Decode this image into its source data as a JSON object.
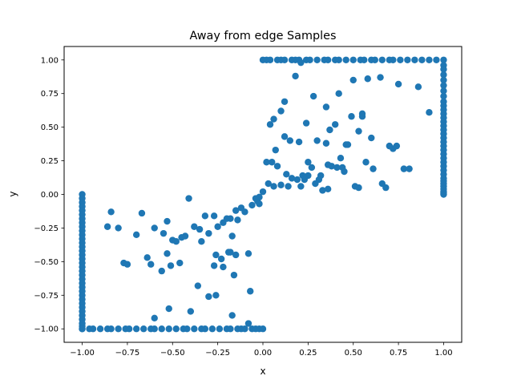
{
  "chart_data": {
    "type": "scatter",
    "title": "Away from edge Samples",
    "xlabel": "x",
    "ylabel": "y",
    "xlim": [
      -1.1,
      1.1
    ],
    "ylim": [
      -1.1,
      1.1
    ],
    "x_ticks": [
      -1.0,
      -0.75,
      -0.5,
      -0.25,
      0.0,
      0.25,
      0.5,
      0.75,
      1.0
    ],
    "x_tick_labels": [
      "−1.00",
      "−0.75",
      "−0.50",
      "−0.25",
      "0.00",
      "0.25",
      "0.50",
      "0.75",
      "1.00"
    ],
    "y_ticks": [
      -1.0,
      -0.75,
      -0.5,
      -0.25,
      0.0,
      0.25,
      0.5,
      0.75,
      1.0
    ],
    "y_tick_labels": [
      "−1.00",
      "−0.75",
      "−0.50",
      "−0.25",
      "0.00",
      "0.25",
      "0.50",
      "0.75",
      "1.00"
    ],
    "grid": false,
    "marker_color": "#1f77b4",
    "series": [
      {
        "x": [
          1.0,
          1.0,
          1.0,
          1.0,
          1.0,
          1.0,
          1.0,
          1.0,
          1.0,
          1.0,
          1.0,
          1.0,
          1.0,
          1.0,
          1.0,
          1.0,
          1.0,
          1.0,
          1.0,
          1.0,
          1.0,
          1.0,
          1.0,
          1.0,
          1.0,
          1.0,
          1.0,
          1.0,
          1.0,
          1.0,
          1.0,
          1.0,
          1.0,
          1.0,
          1.0,
          0.0,
          0.02,
          0.04,
          0.08,
          0.1,
          0.12,
          0.16,
          0.18,
          0.2,
          0.24,
          0.26,
          0.3,
          0.34,
          0.36,
          0.4,
          0.42,
          0.46,
          0.5,
          0.54,
          0.56,
          0.6,
          0.62,
          0.66,
          0.7,
          0.72,
          0.76,
          0.8,
          0.84,
          0.88,
          0.92,
          0.96,
          -1.0,
          -1.0,
          -1.0,
          -1.0,
          -1.0,
          -1.0,
          -1.0,
          -1.0,
          -1.0,
          -1.0,
          -1.0,
          -1.0,
          -1.0,
          -1.0,
          -1.0,
          -1.0,
          -1.0,
          -1.0,
          -1.0,
          -1.0,
          -1.0,
          -1.0,
          -1.0,
          -1.0,
          -1.0,
          -1.0,
          -1.0,
          -1.0,
          -1.0,
          -1.0,
          -1.0,
          -1.0,
          -1.0,
          -1.0,
          -1.0,
          -1.0,
          -0.96,
          -0.94,
          -0.9,
          -0.86,
          -0.84,
          -0.8,
          -0.76,
          -0.74,
          -0.7,
          -0.66,
          -0.62,
          -0.6,
          -0.56,
          -0.52,
          -0.48,
          -0.44,
          -0.42,
          -0.38,
          -0.34,
          -0.32,
          -0.28,
          -0.24,
          -0.2,
          -0.18,
          -0.14,
          -0.12,
          -0.1,
          -0.06,
          -0.04,
          -0.02,
          0.0,
          0.04,
          0.06,
          0.1,
          0.12,
          0.18,
          0.21,
          0.24,
          0.28,
          0.35,
          0.37,
          0.42,
          0.5,
          0.55,
          0.58,
          0.75,
          0.86,
          0.92,
          0.02,
          0.07,
          0.12,
          0.15,
          0.2,
          0.22,
          0.25,
          0.3,
          0.32,
          0.36,
          0.4,
          0.43,
          0.46,
          0.49,
          0.53,
          0.57,
          0.6,
          0.65,
          0.72,
          0.05,
          0.08,
          0.14,
          0.19,
          0.23,
          0.27,
          0.31,
          0.35,
          0.38,
          0.44,
          0.47,
          0.55,
          0.61,
          0.68,
          0.74,
          0.78,
          0.0,
          0.03,
          0.06,
          0.1,
          0.13,
          0.16,
          0.21,
          0.25,
          0.29,
          0.33,
          0.36,
          0.41,
          0.45,
          0.51,
          0.53,
          0.66,
          0.7,
          0.81,
          -0.02,
          -0.04,
          -0.12,
          -0.14,
          -0.18,
          -0.22,
          -0.27,
          -0.32,
          -0.41,
          -0.45,
          -0.5,
          -0.55,
          -0.6,
          -0.67,
          -0.7,
          -0.8,
          -0.86,
          -0.03,
          -0.06,
          -0.1,
          -0.15,
          -0.2,
          -0.25,
          -0.3,
          -0.35,
          -0.38,
          -0.43,
          -0.48,
          -0.53,
          -0.56,
          -0.62,
          -0.75,
          -0.84,
          -0.08,
          -0.16,
          -0.19,
          -0.23,
          -0.26,
          -0.3,
          -0.36,
          -0.46,
          -0.51,
          -0.53,
          -0.64,
          -0.77,
          -0.17,
          -0.02,
          -0.07,
          -0.15,
          -0.18,
          -0.22,
          -0.27,
          -0.34,
          -0.4,
          -0.52,
          -0.6,
          -0.17,
          -0.08,
          -0.26
        ],
        "y": [
          1.0,
          0.96,
          0.93,
          0.89,
          0.85,
          0.81,
          0.77,
          0.73,
          0.69,
          0.66,
          0.63,
          0.6,
          0.57,
          0.54,
          0.51,
          0.48,
          0.45,
          0.42,
          0.39,
          0.36,
          0.33,
          0.3,
          0.27,
          0.24,
          0.21,
          0.18,
          0.15,
          0.12,
          0.1,
          0.08,
          0.06,
          0.04,
          0.02,
          0.01,
          0.0,
          1.0,
          1.0,
          1.0,
          1.0,
          1.0,
          1.0,
          1.0,
          1.0,
          1.0,
          1.0,
          1.0,
          1.0,
          1.0,
          1.0,
          1.0,
          1.0,
          1.0,
          1.0,
          1.0,
          1.0,
          1.0,
          1.0,
          1.0,
          1.0,
          1.0,
          1.0,
          1.0,
          1.0,
          1.0,
          1.0,
          1.0,
          0.0,
          -0.03,
          -0.06,
          -0.09,
          -0.12,
          -0.15,
          -0.18,
          -0.21,
          -0.24,
          -0.27,
          -0.3,
          -0.33,
          -0.36,
          -0.39,
          -0.42,
          -0.45,
          -0.48,
          -0.51,
          -0.54,
          -0.57,
          -0.6,
          -0.63,
          -0.66,
          -0.69,
          -0.72,
          -0.75,
          -0.78,
          -0.81,
          -0.84,
          -0.87,
          -0.9,
          -0.93,
          -0.96,
          -0.98,
          -1.0,
          -1.0,
          -1.0,
          -1.0,
          -1.0,
          -1.0,
          -1.0,
          -1.0,
          -1.0,
          -1.0,
          -1.0,
          -1.0,
          -1.0,
          -1.0,
          -1.0,
          -1.0,
          -1.0,
          -1.0,
          -1.0,
          -1.0,
          -1.0,
          -1.0,
          -1.0,
          -1.0,
          -1.0,
          -1.0,
          -1.0,
          -1.0,
          -1.0,
          -1.0,
          -1.0,
          -1.0,
          -1.0,
          0.52,
          0.56,
          0.62,
          0.69,
          0.88,
          0.98,
          0.53,
          0.73,
          0.65,
          0.48,
          0.75,
          0.85,
          0.58,
          0.86,
          0.82,
          0.8,
          0.61,
          0.24,
          0.33,
          0.43,
          0.4,
          0.39,
          0.14,
          0.24,
          0.4,
          0.14,
          0.22,
          0.52,
          0.27,
          0.37,
          0.58,
          0.47,
          0.24,
          0.42,
          0.87,
          0.34,
          0.24,
          0.21,
          0.06,
          0.11,
          0.11,
          0.2,
          0.11,
          0.38,
          0.21,
          0.2,
          0.37,
          0.6,
          0.19,
          0.05,
          0.36,
          0.19,
          0.02,
          0.08,
          0.06,
          0.07,
          0.15,
          0.12,
          0.06,
          0.14,
          0.08,
          0.03,
          0.04,
          0.2,
          0.17,
          0.06,
          0.05,
          0.08,
          0.36,
          0.19,
          -0.02,
          -0.03,
          -0.1,
          -0.19,
          -0.18,
          -0.21,
          -0.16,
          -0.16,
          -0.03,
          -0.32,
          -0.34,
          -0.29,
          -0.25,
          -0.14,
          -0.3,
          -0.25,
          -0.24,
          -0.05,
          -0.08,
          -0.13,
          -0.12,
          -0.18,
          -0.24,
          -0.29,
          -0.26,
          -0.24,
          -0.31,
          -0.35,
          -0.44,
          -0.57,
          -0.52,
          -0.52,
          -0.13,
          -0.44,
          -0.6,
          -0.43,
          -0.48,
          -0.45,
          -0.76,
          -0.68,
          -0.51,
          -0.53,
          -0.2,
          -0.47,
          -0.51,
          -0.31,
          -0.07,
          -0.72,
          -0.45,
          -0.43,
          -0.54,
          -0.53,
          -0.35,
          -0.87,
          -0.85,
          -0.92,
          -0.9,
          -0.96,
          -0.75
        ]
      }
    ]
  }
}
